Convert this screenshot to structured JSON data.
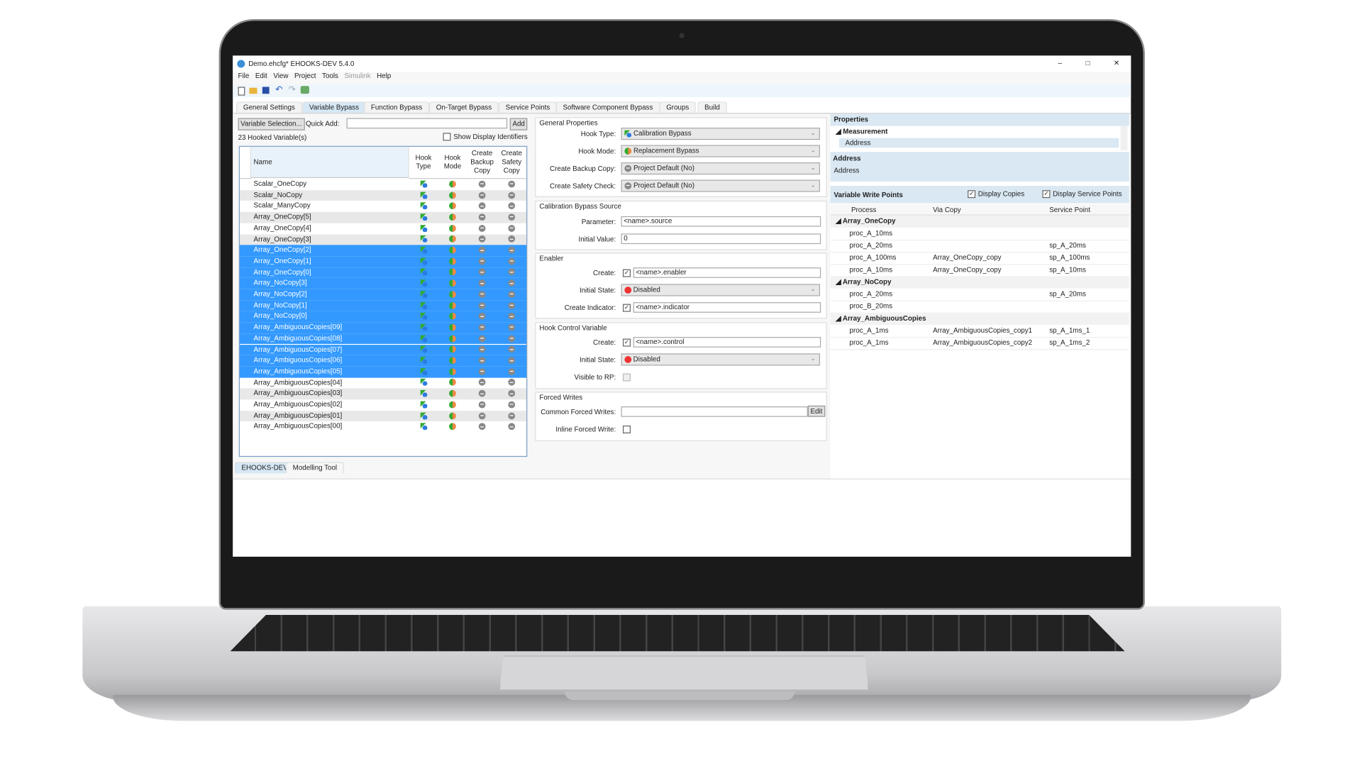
{
  "window": {
    "title": "Demo.ehcfg* EHOOKS-DEV 5.4.0",
    "minimize": "–",
    "maximize": "□",
    "close": "✕"
  },
  "menu": [
    "File",
    "Edit",
    "View",
    "Project",
    "Tools",
    "Simulink",
    "Help"
  ],
  "toolbar": [
    "new-icon",
    "open-icon",
    "save-icon",
    "undo-icon",
    "redo-icon",
    "build-icon"
  ],
  "tabs": [
    "General Settings",
    "Variable Bypass",
    "Function Bypass",
    "On-Target Bypass",
    "Service Points",
    "Software Component Bypass",
    "Groups",
    "Build"
  ],
  "active_tab": "Variable Bypass",
  "left": {
    "variable_selection": "Variable Selection...",
    "quick_add_label": "Quick Add:",
    "quick_add_value": "",
    "add": "Add",
    "count": "23 Hooked Variable(s)",
    "show_display_identifiers": "Show Display Identifiers",
    "columns": [
      "Name",
      "Hook Type",
      "Hook Mode",
      "Create Backup Copy",
      "Create Safety Copy"
    ],
    "rows": [
      "Scalar_OneCopy",
      "Scalar_NoCopy",
      "Scalar_ManyCopy",
      "Array_OneCopy[5]",
      "Array_OneCopy[4]",
      "Array_OneCopy[3]",
      "Array_OneCopy[2]",
      "Array_OneCopy[1]",
      "Array_OneCopy[0]",
      "Array_NoCopy[3]",
      "Array_NoCopy[2]",
      "Array_NoCopy[1]",
      "Array_NoCopy[0]",
      "Array_AmbiguousCopies[09]",
      "Array_AmbiguousCopies[08]",
      "Array_AmbiguousCopies[07]",
      "Array_AmbiguousCopies[06]",
      "Array_AmbiguousCopies[05]",
      "Array_AmbiguousCopies[04]",
      "Array_AmbiguousCopies[03]",
      "Array_AmbiguousCopies[02]",
      "Array_AmbiguousCopies[01]",
      "Array_AmbiguousCopies[00]"
    ],
    "selected_rows": [
      "Array_OneCopy[2]",
      "Array_OneCopy[1]",
      "Array_OneCopy[0]",
      "Array_NoCopy[3]",
      "Array_NoCopy[2]",
      "Array_NoCopy[1]",
      "Array_NoCopy[0]",
      "Array_AmbiguousCopies[09]",
      "Array_AmbiguousCopies[08]",
      "Array_AmbiguousCopies[07]",
      "Array_AmbiguousCopies[06]",
      "Array_AmbiguousCopies[05]"
    ],
    "bottom_tabs": [
      "EHOOKS-DEV",
      "Modelling Tool"
    ]
  },
  "middle": {
    "general": {
      "title": "General Properties",
      "hook_type_label": "Hook Type:",
      "hook_type": "Calibration Bypass",
      "hook_mode_label": "Hook Mode:",
      "hook_mode": "Replacement Bypass",
      "backup_label": "Create Backup Copy:",
      "backup": "Project Default (No)",
      "safety_label": "Create Safety Check:",
      "safety": "Project Default (No)"
    },
    "source": {
      "title": "Calibration Bypass Source",
      "parameter_label": "Parameter:",
      "parameter": "<name>.source",
      "initial_label": "Initial Value:",
      "initial": "0"
    },
    "enabler": {
      "title": "Enabler",
      "create_label": "Create:",
      "create_checked": true,
      "create": "<name>.enabler",
      "state_label": "Initial State:",
      "state": "Disabled",
      "indicator_label": "Create Indicator:",
      "indicator_checked": true,
      "indicator": "<name>.indicator"
    },
    "control": {
      "title": "Hook Control Variable",
      "create_label": "Create:",
      "create_checked": true,
      "create": "<name>.control",
      "state_label": "Initial State:",
      "state": "Disabled",
      "visible_label": "Visible to RP:",
      "visible_checked": false
    },
    "forced": {
      "title": "Forced Writes",
      "common_label": "Common Forced Writes:",
      "common": "",
      "edit": "Edit",
      "inline_label": "Inline Forced Write:",
      "inline_checked": false
    }
  },
  "right": {
    "properties_title": "Properties",
    "category": "Measurement",
    "property": "Address",
    "desc_title": "Address",
    "desc": "Address",
    "write_points_title": "Variable Write Points",
    "display_copies": "Display Copies",
    "display_service_points": "Display Service Points",
    "columns": [
      "Process",
      "Via Copy",
      "Service Point"
    ],
    "groups": [
      {
        "name": "Array_OneCopy",
        "rows": [
          [
            "proc_A_10ms",
            "",
            ""
          ],
          [
            "proc_A_20ms",
            "",
            "sp_A_20ms"
          ],
          [
            "proc_A_100ms",
            "Array_OneCopy_copy",
            "sp_A_100ms"
          ],
          [
            "proc_A_10ms",
            "Array_OneCopy_copy",
            "sp_A_10ms"
          ]
        ]
      },
      {
        "name": "Array_NoCopy",
        "rows": [
          [
            "proc_A_20ms",
            "",
            "sp_A_20ms"
          ],
          [
            "proc_B_20ms",
            "",
            ""
          ]
        ]
      },
      {
        "name": "Array_AmbiguousCopies",
        "rows": [
          [
            "proc_A_1ms",
            "Array_AmbiguousCopies_copy1",
            "sp_A_1ms_1"
          ],
          [
            "proc_A_1ms",
            "Array_AmbiguousCopies_copy2",
            "sp_A_1ms_2"
          ]
        ]
      }
    ]
  }
}
